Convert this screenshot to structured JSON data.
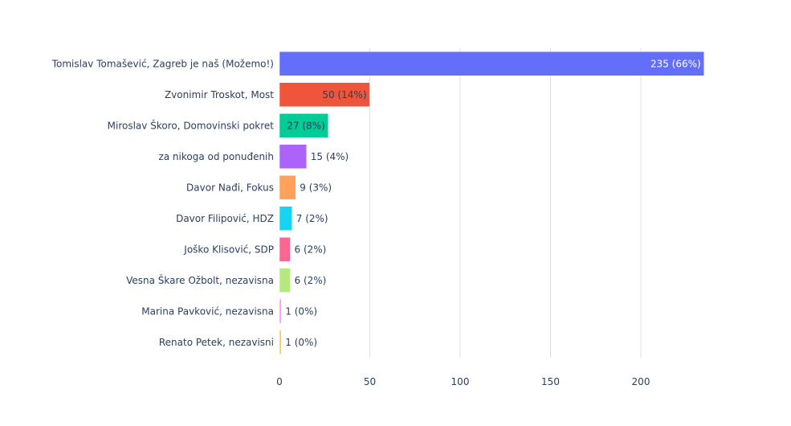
{
  "chart_data": {
    "type": "bar",
    "orientation": "horizontal",
    "title": "",
    "xlabel": "",
    "ylabel": "",
    "xlim": [
      0,
      235
    ],
    "xticks": [
      0,
      50,
      100,
      150,
      200
    ],
    "grid": "vertical",
    "categories": [
      "Tomislav Tomašević, Zagreb je naš (Možemo!)",
      "Zvonimir Troskot, Most",
      "Miroslav Škoro, Domovinski pokret",
      "za nikoga od ponuđenih",
      "Davor Nađi, Fokus",
      "Davor Filipović, HDZ",
      "Joško Klisović, SDP",
      "Vesna Škare Ožbolt, nezavisna",
      "Marina Pavković, nezavisna",
      "Renato Petek, nezavisni"
    ],
    "values": [
      235,
      50,
      27,
      15,
      9,
      7,
      6,
      6,
      1,
      1
    ],
    "labels": [
      "235 (66%)",
      "50 (14%)",
      "27 (8%)",
      "15 (4%)",
      "9 (3%)",
      "7 (2%)",
      "6 (2%)",
      "6 (2%)",
      "1 (0%)",
      "1 (0%)"
    ],
    "colors": [
      "#636efa",
      "#ef553b",
      "#00cc96",
      "#ab63fa",
      "#ffa15a",
      "#19d3f3",
      "#ff6692",
      "#b6e880",
      "#ff97ff",
      "#fecb52"
    ]
  }
}
